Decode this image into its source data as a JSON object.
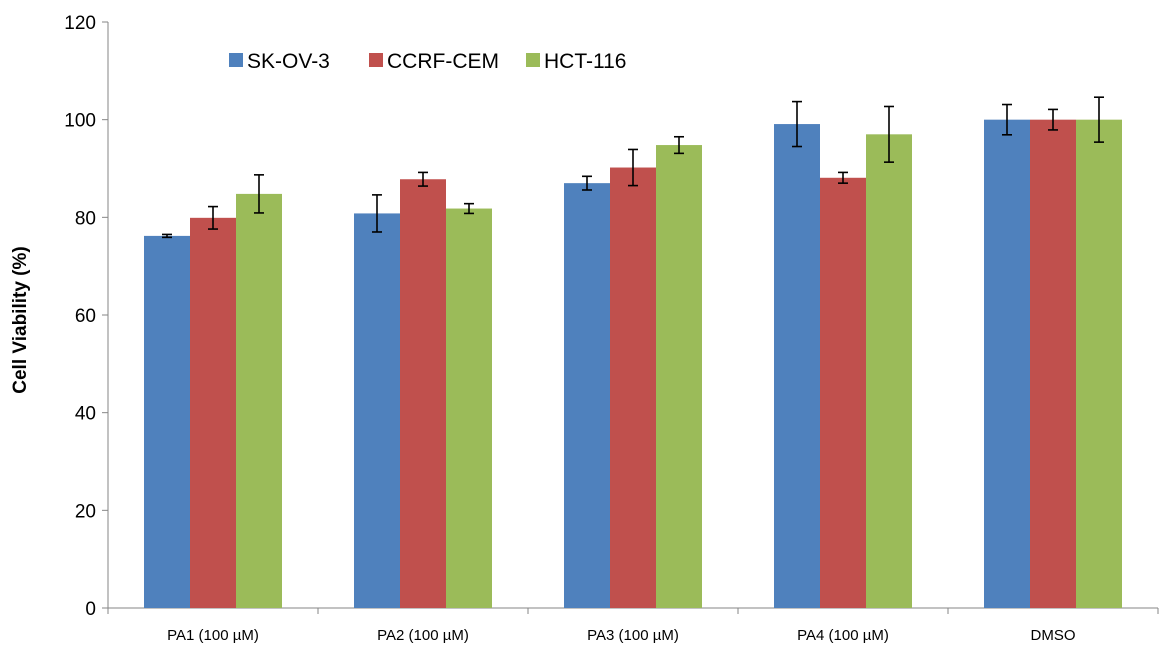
{
  "chart_data": {
    "type": "bar",
    "title": "",
    "xlabel": "",
    "ylabel": "Cell Viability (%)",
    "ylim": [
      0,
      120
    ],
    "yticks": [
      0,
      20,
      40,
      60,
      80,
      100,
      120
    ],
    "grid": false,
    "legend_position": "top-left",
    "categories": [
      "PA1 (100 µM)",
      "PA2 (100 µM)",
      "PA3 (100 µM)",
      "PA4 (100 µM)",
      "DMSO"
    ],
    "series": [
      {
        "name": "SK-OV-3",
        "color": "#4F81BD",
        "values": [
          76.2,
          80.8,
          87.0,
          99.1,
          100.0
        ],
        "errors": [
          0.3,
          3.8,
          1.4,
          4.6,
          3.1
        ]
      },
      {
        "name": "CCRF-CEM",
        "color": "#C0504D",
        "values": [
          79.9,
          87.8,
          90.2,
          88.1,
          100.0
        ],
        "errors": [
          2.3,
          1.4,
          3.7,
          1.1,
          2.1
        ]
      },
      {
        "name": "HCT-116",
        "color": "#9BBB59",
        "values": [
          84.8,
          81.8,
          94.8,
          97.0,
          100.0
        ],
        "errors": [
          3.9,
          1.0,
          1.7,
          5.7,
          4.6
        ]
      }
    ]
  }
}
